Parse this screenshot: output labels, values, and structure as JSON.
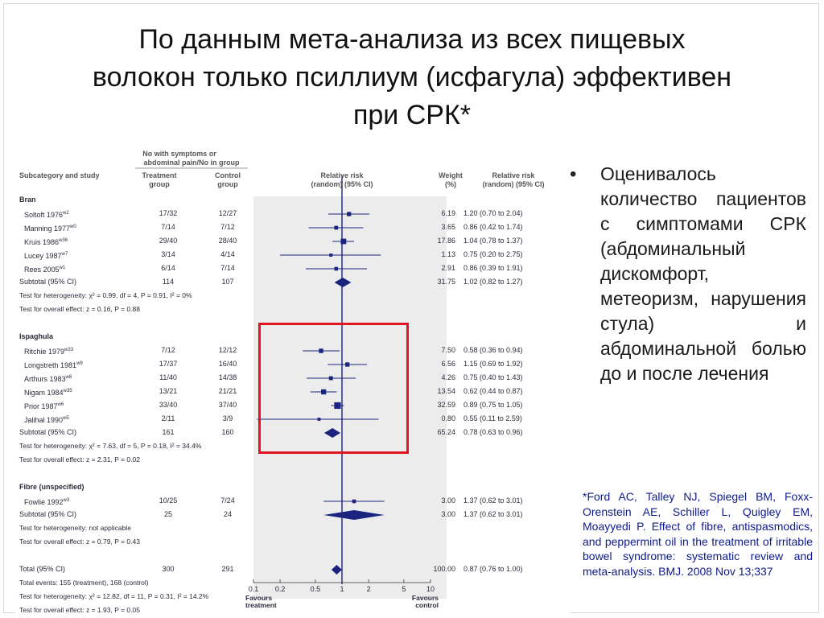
{
  "slide": {
    "title_lines": [
      "По данным мета-анализа из всех пищевых",
      "волокон только псиллиум (исфагула) эффективен",
      "при СРК*"
    ],
    "bullet_text": "Оценивалось количество пациентов с симптомами СРК (абдоминальный дискомфорт, метеоризм, нарушения стула) и абдоминальной болью до и после лечения",
    "citation": "*Ford AC, Talley NJ, Spiegel BM, Foxx-Orenstein AE, Schiller L, Quigley EM, Moayyedi P. Effect of fibre, antispasmodics, and peppermint oil in the treatment of irritable bowel syndrome: systematic review and meta-analysis. BMJ. 2008 Nov 13;337",
    "accent_color": "#e0141e",
    "citation_color": "#0d1a8c"
  },
  "chart_data": {
    "type": "forest",
    "headers": {
      "group_header_line1": "No with symptoms or",
      "group_header_line2": "abdominal pain/No in group",
      "subcategory": "Subcategory and study",
      "treatment_line1": "Treatment",
      "treatment_line2": "group",
      "control_line1": "Control",
      "control_line2": "group",
      "rr_line1": "Relative risk",
      "rr_line2": "(random) (95% CI)",
      "weight_line1": "Weight",
      "weight_line2": "(%)",
      "rr_ci_line1": "Relative risk",
      "rr_ci_line2": "(random) (95% CI)"
    },
    "x_scale": "log",
    "x_ticks": [
      "0.1",
      "0.2",
      "0.5",
      "1",
      "2",
      "5",
      "10"
    ],
    "x_tick_values": [
      0.1,
      0.2,
      0.5,
      1,
      2,
      5,
      10
    ],
    "favours_left": "Favours treatment",
    "favours_right": "Favours control",
    "groups": [
      {
        "name": "Bran",
        "studies": [
          {
            "study": "Soltoft 1976",
            "sup": "w2",
            "treatment": "17/32",
            "control": "12/27",
            "weight": "6.19",
            "rr_text": "1.20 (0.70 to 2.04)",
            "rr": 1.2,
            "lo": 0.7,
            "hi": 2.04
          },
          {
            "study": "Manning 1977",
            "sup": "w0",
            "treatment": "7/14",
            "control": "7/12",
            "weight": "3.65",
            "rr_text": "0.86 (0.42 to 1.74)",
            "rr": 0.86,
            "lo": 0.42,
            "hi": 1.74
          },
          {
            "study": "Kruis 1986",
            "sup": "w36",
            "treatment": "29/40",
            "control": "28/40",
            "weight": "17.86",
            "rr_text": "1.04 (0.78 to 1.37)",
            "rr": 1.04,
            "lo": 0.78,
            "hi": 1.37
          },
          {
            "study": "Lucey 1987",
            "sup": "w7",
            "treatment": "3/14",
            "control": "4/14",
            "weight": "1.13",
            "rr_text": "0.75 (0.20 to 2.75)",
            "rr": 0.75,
            "lo": 0.2,
            "hi": 2.75
          },
          {
            "study": "Rees 2005",
            "sup": "w1",
            "treatment": "6/14",
            "control": "7/14",
            "weight": "2.91",
            "rr_text": "0.86 (0.39 to 1.91)",
            "rr": 0.86,
            "lo": 0.39,
            "hi": 1.91
          }
        ],
        "subtotal": {
          "label": "Subtotal (95% CI)",
          "treatment": "114",
          "control": "107",
          "weight": "31.75",
          "rr_text": "1.02 (0.82 to 1.27)",
          "rr": 1.02,
          "lo": 0.82,
          "hi": 1.27
        },
        "heterogeneity": "Test for heterogeneity: χ² = 0.99, df = 4, P = 0.91, I² = 0%",
        "overall_effect": "Test for overall effect: z = 0.16, P = 0.88"
      },
      {
        "name": "Ispaghula",
        "studies": [
          {
            "study": "Ritchie 1979",
            "sup": "w33",
            "treatment": "7/12",
            "control": "12/12",
            "weight": "7.50",
            "rr_text": "0.58 (0.36 to 0.94)",
            "rr": 0.58,
            "lo": 0.36,
            "hi": 0.94
          },
          {
            "study": "Longstreth 1981",
            "sup": "w9",
            "treatment": "17/37",
            "control": "16/40",
            "weight": "6.56",
            "rr_text": "1.15 (0.69 to 1.92)",
            "rr": 1.15,
            "lo": 0.69,
            "hi": 1.92
          },
          {
            "study": "Arthurs 1983",
            "sup": "w8",
            "treatment": "11/40",
            "control": "14/38",
            "weight": "4.26",
            "rr_text": "0.75 (0.40 to 1.43)",
            "rr": 0.75,
            "lo": 0.4,
            "hi": 1.43
          },
          {
            "study": "Nigam 1984",
            "sup": "w35",
            "treatment": "13/21",
            "control": "21/21",
            "weight": "13.54",
            "rr_text": "0.62 (0.44 to 0.87)",
            "rr": 0.62,
            "lo": 0.44,
            "hi": 0.87
          },
          {
            "study": "Prior 1987",
            "sup": "w6",
            "treatment": "33/40",
            "control": "37/40",
            "weight": "32.59",
            "rr_text": "0.89 (0.75 to 1.05)",
            "rr": 0.89,
            "lo": 0.75,
            "hi": 1.05
          },
          {
            "study": "Jalihal 1990",
            "sup": "w5",
            "treatment": "2/11",
            "control": "3/9",
            "weight": "0.80",
            "rr_text": "0.55 (0.11 to 2.59)",
            "rr": 0.55,
            "lo": 0.11,
            "hi": 2.59
          }
        ],
        "subtotal": {
          "label": "Subtotal (95% CI)",
          "treatment": "161",
          "control": "160",
          "weight": "65.24",
          "rr_text": "0.78 (0.63 to 0.96)",
          "rr": 0.78,
          "lo": 0.63,
          "hi": 0.96
        },
        "heterogeneity": "Test for heterogeneity: χ² = 7.63, df = 5, P = 0.18, I² = 34.4%",
        "overall_effect": "Test for overall effect: z = 2.31, P = 0.02"
      },
      {
        "name": "Fibre (unspecified)",
        "studies": [
          {
            "study": "Fowlie 1992",
            "sup": "w3",
            "treatment": "10/25",
            "control": "7/24",
            "weight": "3.00",
            "rr_text": "1.37 (0.62 to 3.01)",
            "rr": 1.37,
            "lo": 0.62,
            "hi": 3.01
          }
        ],
        "subtotal": {
          "label": "Subtotal (95% CI)",
          "treatment": "25",
          "control": "24",
          "weight": "3.00",
          "rr_text": "1.37 (0.62 to 3.01)",
          "rr": 1.37,
          "lo": 0.62,
          "hi": 3.01
        },
        "heterogeneity": "Test for heterogeneity: not applicable",
        "overall_effect": "Test for overall effect: z = 0.79, P = 0.43"
      }
    ],
    "total": {
      "label": "Total (95% CI)",
      "treatment": "300",
      "control": "291",
      "weight": "100.00",
      "rr_text": "0.87 (0.76 to 1.00)",
      "rr": 0.87,
      "lo": 0.76,
      "hi": 1.0
    },
    "total_events": "Total events: 155 (treatment), 168 (control)",
    "total_heterogeneity": "Test for heterogeneity: χ² = 12.82, df = 11, P = 0.31, I² = 14.2%",
    "total_overall_effect": "Test for overall effect: z = 1.93, P = 0.05"
  }
}
